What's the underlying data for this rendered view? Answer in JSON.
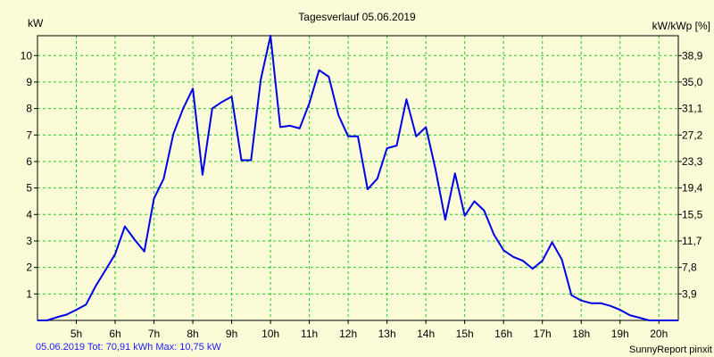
{
  "chart_data": {
    "type": "line",
    "title": "Tagesverlauf 05.06.2019",
    "ylabel_left": "kW",
    "ylabel_right": "kW/kWp [%]",
    "xlim": [
      4.0,
      20.5
    ],
    "ylim": [
      0,
      10.75
    ],
    "x_ticks": [
      {
        "value": 5,
        "label": "5h"
      },
      {
        "value": 6,
        "label": "6h"
      },
      {
        "value": 7,
        "label": "7h"
      },
      {
        "value": 8,
        "label": "8h"
      },
      {
        "value": 9,
        "label": "9h"
      },
      {
        "value": 10,
        "label": "10h"
      },
      {
        "value": 11,
        "label": "11h"
      },
      {
        "value": 12,
        "label": "12h"
      },
      {
        "value": 13,
        "label": "13h"
      },
      {
        "value": 14,
        "label": "14h"
      },
      {
        "value": 15,
        "label": "15h"
      },
      {
        "value": 16,
        "label": "16h"
      },
      {
        "value": 17,
        "label": "17h"
      },
      {
        "value": 18,
        "label": "18h"
      },
      {
        "value": 19,
        "label": "19h"
      },
      {
        "value": 20,
        "label": "20h"
      }
    ],
    "y_ticks_left": [
      {
        "value": 1,
        "label": "1"
      },
      {
        "value": 2,
        "label": "2"
      },
      {
        "value": 3,
        "label": "3"
      },
      {
        "value": 4,
        "label": "4"
      },
      {
        "value": 5,
        "label": "5"
      },
      {
        "value": 6,
        "label": "6"
      },
      {
        "value": 7,
        "label": "7"
      },
      {
        "value": 8,
        "label": "8"
      },
      {
        "value": 9,
        "label": "9"
      },
      {
        "value": 10,
        "label": "10"
      }
    ],
    "y_ticks_right": [
      {
        "value": 1,
        "label": "3,9"
      },
      {
        "value": 2,
        "label": "7,8"
      },
      {
        "value": 3,
        "label": "11,7"
      },
      {
        "value": 4,
        "label": "15,5"
      },
      {
        "value": 5,
        "label": "19,4"
      },
      {
        "value": 6,
        "label": "23,3"
      },
      {
        "value": 7,
        "label": "27,2"
      },
      {
        "value": 8,
        "label": "31,1"
      },
      {
        "value": 9,
        "label": "35,0"
      },
      {
        "value": 10,
        "label": "38,9"
      }
    ],
    "series": [
      {
        "name": "kW",
        "color": "#0000e6",
        "points": [
          [
            4.0,
            0.0
          ],
          [
            4.25,
            0.0
          ],
          [
            4.5,
            0.12
          ],
          [
            4.75,
            0.22
          ],
          [
            5.0,
            0.4
          ],
          [
            5.25,
            0.6
          ],
          [
            5.5,
            1.3
          ],
          [
            5.75,
            1.9
          ],
          [
            6.0,
            2.5
          ],
          [
            6.25,
            3.55
          ],
          [
            6.5,
            3.05
          ],
          [
            6.75,
            2.6
          ],
          [
            7.0,
            4.6
          ],
          [
            7.25,
            5.35
          ],
          [
            7.5,
            7.05
          ],
          [
            7.75,
            8.0
          ],
          [
            8.0,
            8.75
          ],
          [
            8.25,
            5.5
          ],
          [
            8.5,
            8.0
          ],
          [
            8.75,
            8.25
          ],
          [
            9.0,
            8.45
          ],
          [
            9.25,
            6.05
          ],
          [
            9.5,
            6.05
          ],
          [
            9.75,
            9.1
          ],
          [
            10.0,
            10.75
          ],
          [
            10.25,
            7.3
          ],
          [
            10.5,
            7.35
          ],
          [
            10.75,
            7.25
          ],
          [
            11.0,
            8.2
          ],
          [
            11.25,
            9.45
          ],
          [
            11.5,
            9.2
          ],
          [
            11.75,
            7.75
          ],
          [
            12.0,
            6.95
          ],
          [
            12.25,
            6.95
          ],
          [
            12.5,
            4.95
          ],
          [
            12.75,
            5.35
          ],
          [
            13.0,
            6.5
          ],
          [
            13.25,
            6.6
          ],
          [
            13.5,
            8.35
          ],
          [
            13.75,
            6.95
          ],
          [
            14.0,
            7.3
          ],
          [
            14.25,
            5.7
          ],
          [
            14.5,
            3.8
          ],
          [
            14.75,
            5.55
          ],
          [
            15.0,
            3.95
          ],
          [
            15.25,
            4.5
          ],
          [
            15.5,
            4.15
          ],
          [
            15.75,
            3.25
          ],
          [
            16.0,
            2.65
          ],
          [
            16.25,
            2.4
          ],
          [
            16.5,
            2.25
          ],
          [
            16.75,
            1.95
          ],
          [
            17.0,
            2.25
          ],
          [
            17.25,
            2.95
          ],
          [
            17.5,
            2.3
          ],
          [
            17.75,
            0.95
          ],
          [
            18.0,
            0.75
          ],
          [
            18.25,
            0.65
          ],
          [
            18.5,
            0.65
          ],
          [
            18.75,
            0.55
          ],
          [
            19.0,
            0.4
          ],
          [
            19.25,
            0.2
          ],
          [
            19.5,
            0.1
          ],
          [
            19.75,
            0.0
          ],
          [
            20.0,
            0.0
          ],
          [
            20.5,
            0.0
          ]
        ]
      }
    ]
  },
  "footer": {
    "left": "05.06.2019 Tot: 70,91 kWh Max: 10,75 kW",
    "right": "SunnyReport pinxit"
  },
  "colors": {
    "background": "#fbfbd8",
    "grid": "#22cc22",
    "series": "#0000e6",
    "footer_left": "#1a1aff"
  }
}
